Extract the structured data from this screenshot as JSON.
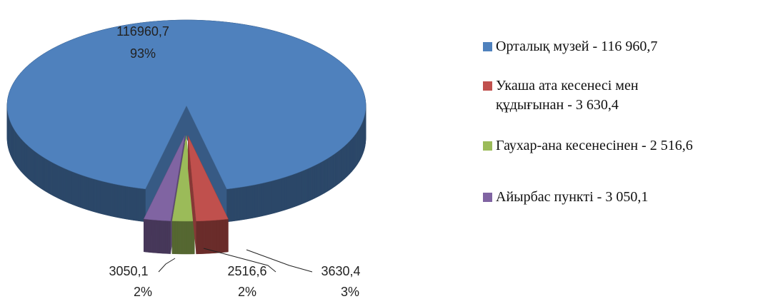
{
  "chart_data": {
    "type": "pie",
    "categories": [
      "Орталық музей - 116 960,7",
      "Укаша ата кесенесі мен құдығынан - 3 630,4",
      "Гаухар-ана кесенесінен - 2 516,6",
      "Айырбас пункті - 3 050,1"
    ],
    "values": [
      116960.7,
      3630.4,
      2516.6,
      3050.1
    ],
    "value_labels": [
      "116960,7",
      "3630,4",
      "2516,6",
      "3050,1"
    ],
    "percent_labels": [
      "93%",
      "3%",
      "2%",
      "2%"
    ],
    "colors": [
      "#4f81bd",
      "#c0504d",
      "#9bbb59",
      "#8064a2"
    ],
    "legend": "right"
  }
}
